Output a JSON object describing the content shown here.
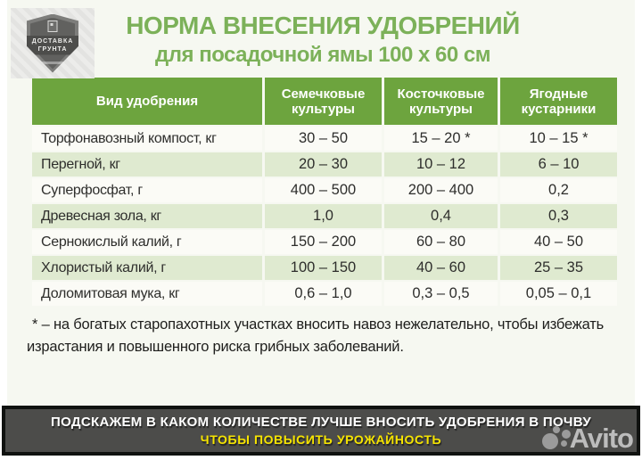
{
  "chart_data": {
    "type": "table",
    "title": "НОРМА ВНЕСЕНИЯ УДОБРЕНИЙ",
    "subtitle": "для посадочной ямы 100 х 60 см",
    "columns": [
      "Вид удобрения",
      "Семечковые культуры",
      "Косточковые культуры",
      "Ягодные кустарники"
    ],
    "rows": [
      [
        "Торфонавозный компост, кг",
        "30 – 50",
        "15 – 20 *",
        "10 – 15 *"
      ],
      [
        "Перегной, кг",
        "20 – 30",
        "10 – 12",
        "6 – 10"
      ],
      [
        "Суперфосфат, г",
        "400 – 500",
        "200 – 400",
        "0,2"
      ],
      [
        "Древесная зола, кг",
        "1,0",
        "0,4",
        "0,3"
      ],
      [
        "Сернокислый калий, г",
        "150 – 200",
        "60 – 80",
        "40 – 50"
      ],
      [
        "Хлористый калий, г",
        "100 – 150",
        "40 – 60",
        "25 – 35"
      ],
      [
        "Доломитовая мука, кг",
        "0,6 – 1,0",
        "0,3 – 0,5",
        "0,05 – 0,1"
      ]
    ],
    "footnote": "* – на богатых старопахотных участках вносить навоз нежелательно, чтобы избежать израстания и повышенного риска грибных заболеваний."
  },
  "logo": {
    "ribbon_line1": "ДОСТАВКА",
    "ribbon_line2": "ГРУНТА"
  },
  "banner": {
    "line1": "ПОДСКАЖЕМ В КАКОМ КОЛИЧЕСТВЕ ЛУЧШЕ ВНОСИТЬ УДОБРЕНИЯ В ПОЧВУ",
    "line2": "ЧТОБЫ ПОВЫСИТЬ УРОЖАЙНОСТЬ"
  },
  "watermark": {
    "brand": "Avito"
  },
  "colors": {
    "title_green": "#7cb159",
    "header_green": "#6da43e",
    "row_green": "#dfead0",
    "banner_bg": "#4c4c4a",
    "banner_yellow": "#f6e400"
  }
}
